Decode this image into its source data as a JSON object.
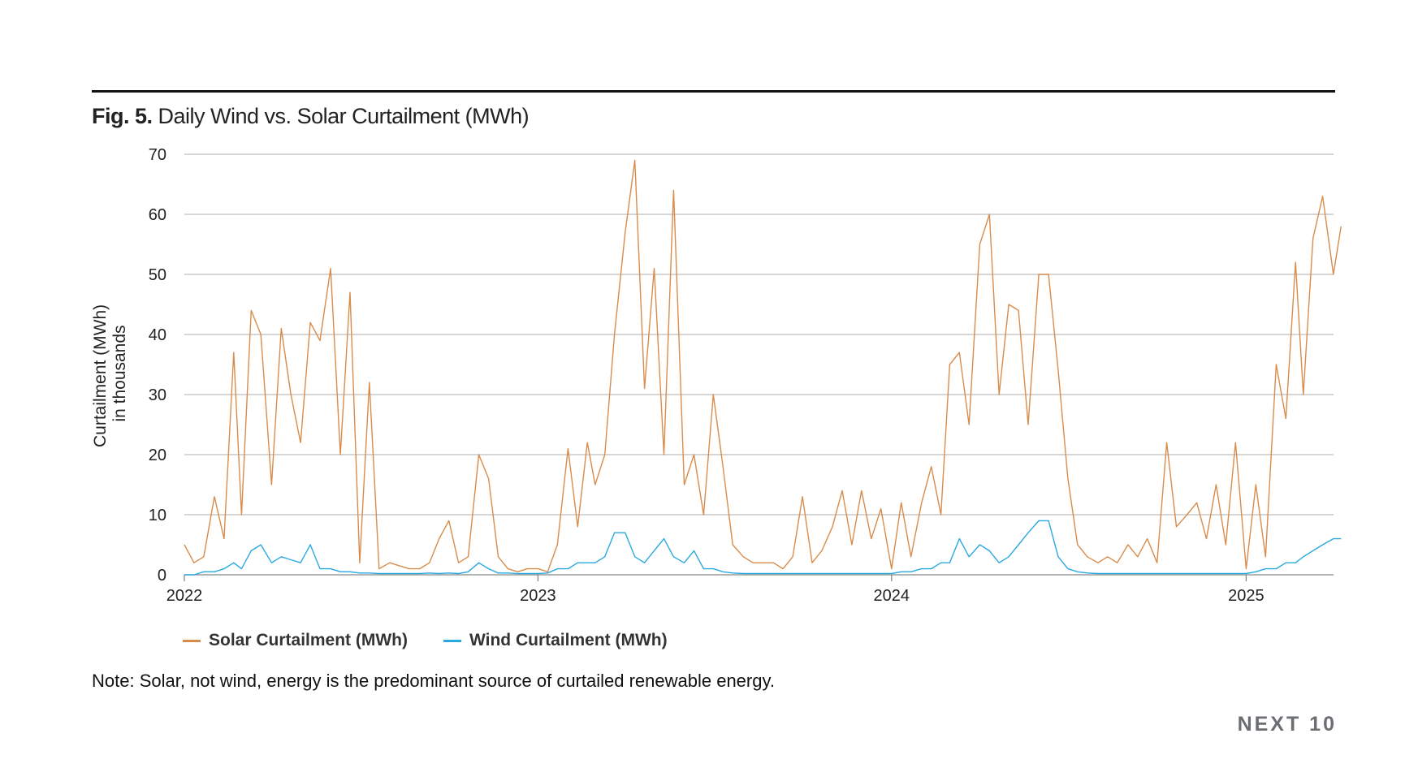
{
  "figure": {
    "label": "Fig. 5.",
    "title": "Daily Wind vs. Solar Curtailment (MWh)",
    "note": "Note: Solar, not wind, energy is the predominant source of curtailed renewable energy.",
    "logo": "NEXT 10"
  },
  "chart_data": {
    "type": "line",
    "title": "Daily Wind vs. Solar Curtailment (MWh)",
    "xlabel": "",
    "ylabel": "Curtailment (MWh)\nin thousands",
    "ylabel_lines": [
      "Curtailment (MWh)",
      "in thousands"
    ],
    "ylim": [
      0,
      70
    ],
    "yticks": [
      0,
      10,
      20,
      30,
      40,
      50,
      60,
      70
    ],
    "xticks": [
      "2022",
      "2023",
      "2024",
      "2025"
    ],
    "xlim": [
      "2022-01-01",
      "2025-04-10"
    ],
    "grid": "horizontal",
    "legend_placement": "bottom",
    "colors": {
      "solar": "#d98c4a",
      "wind": "#29a9e1",
      "grid": "#bdbdbd"
    },
    "dates": [
      "2022-01-01",
      "2022-01-11",
      "2022-01-21",
      "2022-02-01",
      "2022-02-11",
      "2022-02-21",
      "2022-03-01",
      "2022-03-11",
      "2022-03-21",
      "2022-04-01",
      "2022-04-11",
      "2022-04-21",
      "2022-05-01",
      "2022-05-11",
      "2022-05-21",
      "2022-06-01",
      "2022-06-11",
      "2022-06-21",
      "2022-07-01",
      "2022-07-11",
      "2022-07-21",
      "2022-08-01",
      "2022-08-11",
      "2022-08-21",
      "2022-09-01",
      "2022-09-11",
      "2022-09-21",
      "2022-10-01",
      "2022-10-11",
      "2022-10-21",
      "2022-11-01",
      "2022-11-11",
      "2022-11-21",
      "2022-12-01",
      "2022-12-11",
      "2022-12-21",
      "2023-01-01",
      "2023-01-11",
      "2023-01-21",
      "2023-02-01",
      "2023-02-11",
      "2023-02-21",
      "2023-03-01",
      "2023-03-11",
      "2023-03-21",
      "2023-04-01",
      "2023-04-11",
      "2023-04-21",
      "2023-05-01",
      "2023-05-11",
      "2023-05-21",
      "2023-06-01",
      "2023-06-11",
      "2023-06-21",
      "2023-07-01",
      "2023-07-11",
      "2023-07-21",
      "2023-08-01",
      "2023-08-11",
      "2023-08-21",
      "2023-09-01",
      "2023-09-11",
      "2023-09-21",
      "2023-10-01",
      "2023-10-11",
      "2023-10-21",
      "2023-11-01",
      "2023-11-11",
      "2023-11-21",
      "2023-12-01",
      "2023-12-11",
      "2023-12-21",
      "2024-01-01",
      "2024-01-11",
      "2024-01-21",
      "2024-02-01",
      "2024-02-11",
      "2024-02-21",
      "2024-03-01",
      "2024-03-11",
      "2024-03-21",
      "2024-04-01",
      "2024-04-11",
      "2024-04-21",
      "2024-05-01",
      "2024-05-11",
      "2024-05-21",
      "2024-06-01",
      "2024-06-11",
      "2024-06-21",
      "2024-07-01",
      "2024-07-11",
      "2024-07-21",
      "2024-08-01",
      "2024-08-11",
      "2024-08-21",
      "2024-09-01",
      "2024-09-11",
      "2024-09-21",
      "2024-10-01",
      "2024-10-11",
      "2024-10-21",
      "2024-11-01",
      "2024-11-11",
      "2024-11-21",
      "2024-12-01",
      "2024-12-11",
      "2024-12-21",
      "2025-01-01",
      "2025-01-11",
      "2025-01-21",
      "2025-02-01",
      "2025-02-11",
      "2025-02-21",
      "2025-03-01",
      "2025-03-11",
      "2025-03-21",
      "2025-04-01",
      "2025-04-09"
    ],
    "series": [
      {
        "name": "Solar Curtailment (MWh)",
        "key": "solar",
        "values": [
          5,
          2,
          3,
          13,
          6,
          37,
          10,
          44,
          40,
          15,
          41,
          30,
          22,
          42,
          39,
          51,
          20,
          47,
          2,
          32,
          1,
          2,
          1.5,
          1,
          1,
          2,
          6,
          9,
          2,
          3,
          20,
          16,
          3,
          1,
          0.5,
          1,
          1,
          0.5,
          5,
          21,
          8,
          22,
          15,
          20,
          40,
          57,
          69,
          31,
          51,
          20,
          64,
          15,
          20,
          10,
          30,
          18,
          5,
          3,
          2,
          2,
          2,
          1,
          3,
          13,
          2,
          4,
          8,
          14,
          5,
          14,
          6,
          11,
          1,
          12,
          3,
          12,
          18,
          10,
          35,
          37,
          25,
          55,
          60,
          30,
          45,
          44,
          25,
          50,
          50,
          34,
          16,
          5,
          3,
          2,
          3,
          2,
          5,
          3,
          6,
          2,
          22,
          8,
          10,
          12,
          6,
          15,
          5,
          22,
          1,
          15,
          3,
          35,
          26,
          52,
          30,
          56,
          63,
          50,
          58
        ]
      },
      {
        "name": "Wind Curtailment (MWh)",
        "key": "wind",
        "values": [
          0,
          0,
          0.5,
          0.5,
          1,
          2,
          1,
          4,
          5,
          2,
          3,
          2.5,
          2,
          5,
          1,
          1,
          0.5,
          0.5,
          0.3,
          0.3,
          0.2,
          0.2,
          0.2,
          0.2,
          0.2,
          0.3,
          0.2,
          0.3,
          0.2,
          0.5,
          2,
          1,
          0.3,
          0.3,
          0.2,
          0.2,
          0.2,
          0.3,
          1,
          1,
          2,
          2,
          2,
          3,
          7,
          7,
          3,
          2,
          4,
          6,
          3,
          2,
          4,
          1,
          1,
          0.5,
          0.3,
          0.2,
          0.2,
          0.2,
          0.2,
          0.2,
          0.2,
          0.2,
          0.2,
          0.2,
          0.2,
          0.2,
          0.2,
          0.2,
          0.2,
          0.2,
          0.2,
          0.5,
          0.5,
          1,
          1,
          2,
          2,
          6,
          3,
          5,
          4,
          2,
          3,
          5,
          7,
          9,
          9,
          3,
          1,
          0.5,
          0.3,
          0.2,
          0.2,
          0.2,
          0.2,
          0.2,
          0.2,
          0.2,
          0.2,
          0.2,
          0.2,
          0.2,
          0.2,
          0.2,
          0.2,
          0.2,
          0.2,
          0.5,
          1,
          1,
          2,
          2,
          3,
          4,
          5,
          6,
          6
        ]
      }
    ]
  }
}
